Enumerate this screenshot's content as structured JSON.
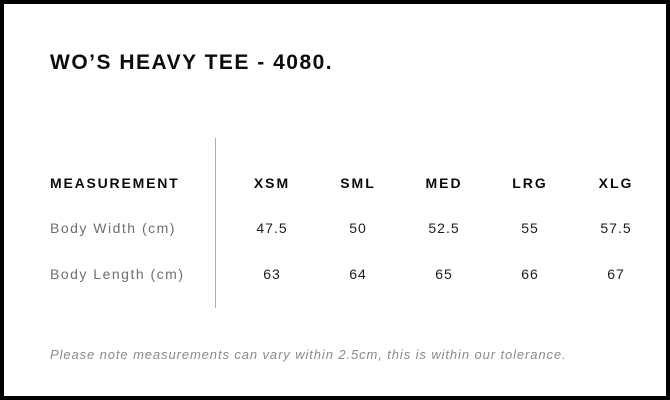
{
  "title": "WO’S HEAVY TEE - 4080.",
  "table": {
    "header": {
      "label": "MEASUREMENT",
      "sizes": [
        "XSM",
        "SML",
        "MED",
        "LRG",
        "XLG"
      ]
    },
    "rows": [
      {
        "label": "Body Width (cm)",
        "values": [
          "47.5",
          "50",
          "52.5",
          "55",
          "57.5"
        ]
      },
      {
        "label": "Body Length (cm)",
        "values": [
          "63",
          "64",
          "65",
          "66",
          "67"
        ]
      }
    ]
  },
  "note": "Please note measurements can vary within 2.5cm, this is within our tolerance.",
  "colors": {
    "frame_border": "#000000",
    "heading_text": "#0c0c0c",
    "row_label_text": "#6f6f6f",
    "value_text": "#1d1d1d",
    "note_text": "#8a8a8a",
    "divider": "#aeaeae",
    "background": "#ffffff"
  }
}
